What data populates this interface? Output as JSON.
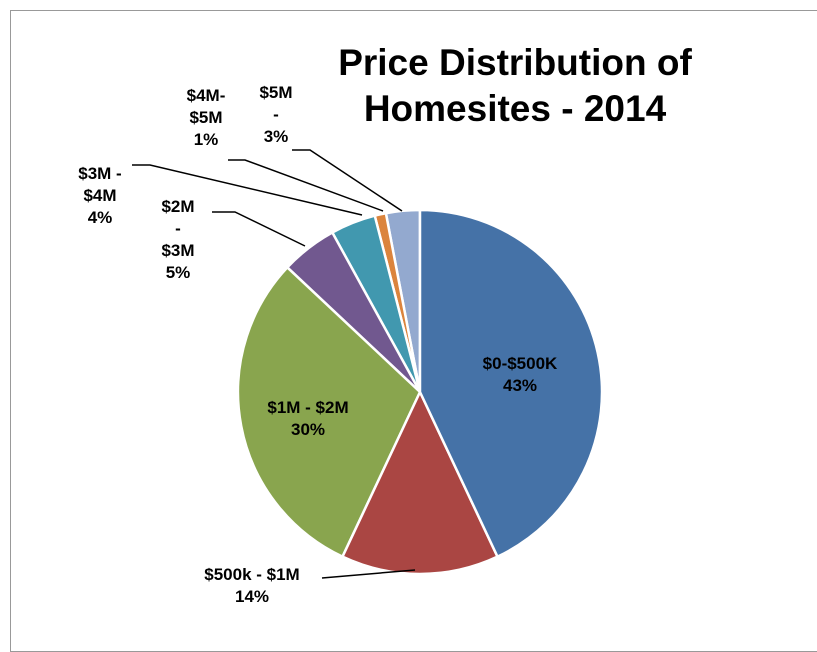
{
  "chart_data": {
    "type": "pie",
    "title": "Price Distribution of Homesites - 2014",
    "categories": [
      "$0-$500K",
      "$500k - $1M",
      "$1M - $2M",
      "$2M - $3M",
      "$3M - $4M",
      "$4M-$5M",
      "$5M -"
    ],
    "values": [
      43,
      14,
      30,
      5,
      4,
      1,
      3
    ],
    "value_labels": [
      "43%",
      "14%",
      "30%",
      "5%",
      "4%",
      "1%",
      "3%"
    ],
    "colors": [
      "#4572a7",
      "#aa4643",
      "#89a54e",
      "#71588f",
      "#4198af",
      "#db843d",
      "#93a9cf"
    ]
  }
}
